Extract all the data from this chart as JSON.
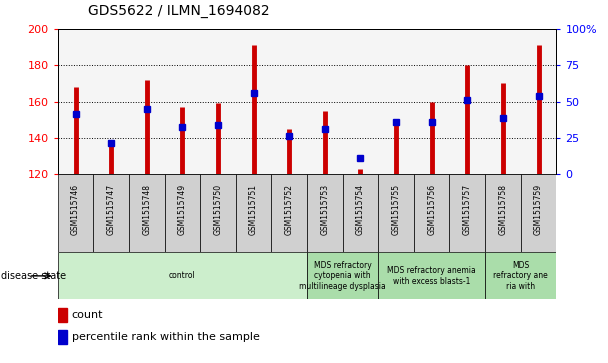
{
  "title": "GDS5622 / ILMN_1694082",
  "samples": [
    "GSM1515746",
    "GSM1515747",
    "GSM1515748",
    "GSM1515749",
    "GSM1515750",
    "GSM1515751",
    "GSM1515752",
    "GSM1515753",
    "GSM1515754",
    "GSM1515755",
    "GSM1515756",
    "GSM1515757",
    "GSM1515758",
    "GSM1515759"
  ],
  "counts": [
    168,
    138,
    172,
    157,
    159,
    191,
    145,
    155,
    123,
    150,
    160,
    180,
    170,
    191
  ],
  "percentile_values": [
    153,
    137,
    156,
    146,
    147,
    165,
    141,
    145,
    129,
    149,
    149,
    161,
    151,
    163
  ],
  "ymin": 120,
  "ymax": 200,
  "yticks": [
    120,
    140,
    160,
    180,
    200
  ],
  "right_yticks": [
    0,
    25,
    50,
    75,
    100
  ],
  "bar_color": "#cc0000",
  "dot_color": "#0000cc",
  "xticklabel_bg": "#d0d0d0",
  "plot_bg": "#f5f5f5",
  "disease_groups": [
    {
      "label": "control",
      "start": 0,
      "end": 7,
      "color": "#cceecc"
    },
    {
      "label": "MDS refractory\ncytopenia with\nmultilineage dysplasia",
      "start": 7,
      "end": 9,
      "color": "#aaddaa"
    },
    {
      "label": "MDS refractory anemia\nwith excess blasts-1",
      "start": 9,
      "end": 12,
      "color": "#aaddaa"
    },
    {
      "label": "MDS\nrefractory ane\nria with",
      "start": 12,
      "end": 14,
      "color": "#aaddaa"
    }
  ],
  "disease_state_label": "disease state",
  "legend_count_label": "count",
  "legend_percentile_label": "percentile rank within the sample"
}
